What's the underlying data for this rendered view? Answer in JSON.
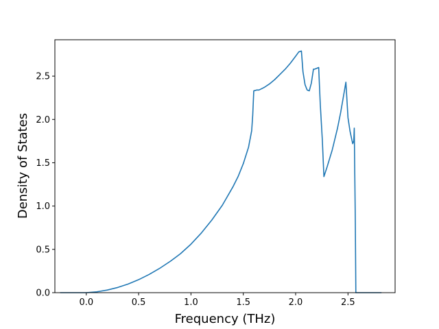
{
  "chart_data": {
    "type": "line",
    "title": "",
    "xlabel": "Frequency (THz)",
    "ylabel": "Density of States",
    "xlim": [
      -0.3,
      2.95
    ],
    "ylim": [
      0.0,
      2.92
    ],
    "xticks": [
      0.0,
      0.5,
      1.0,
      1.5,
      2.0,
      2.5
    ],
    "xtick_labels": [
      "0.0",
      "0.5",
      "1.0",
      "1.5",
      "2.0",
      "2.5"
    ],
    "yticks": [
      0.0,
      0.5,
      1.0,
      1.5,
      2.0,
      2.5
    ],
    "ytick_labels": [
      "0.0",
      "0.5",
      "1.0",
      "1.5",
      "2.0",
      "2.5"
    ],
    "grid": false,
    "series_color": "#1f77b4",
    "series": [
      {
        "x": [
          -0.25,
          0.0,
          0.1,
          0.2,
          0.3,
          0.4,
          0.5,
          0.6,
          0.7,
          0.8,
          0.9,
          1.0,
          1.1,
          1.2,
          1.3,
          1.4,
          1.45,
          1.5,
          1.55,
          1.58,
          1.59,
          1.6,
          1.63,
          1.65,
          1.7,
          1.75,
          1.8,
          1.85,
          1.9,
          1.95,
          2.0,
          2.03,
          2.055,
          2.07,
          2.09,
          2.11,
          2.13,
          2.15,
          2.17,
          2.18,
          2.2,
          2.22,
          2.235,
          2.255,
          2.27,
          2.3,
          2.35,
          2.4,
          2.43,
          2.46,
          2.48,
          2.5,
          2.52,
          2.545,
          2.555,
          2.56,
          2.57,
          2.575,
          2.6,
          2.82
        ],
        "y": [
          0.0,
          0.0,
          0.01,
          0.03,
          0.06,
          0.1,
          0.15,
          0.21,
          0.28,
          0.36,
          0.45,
          0.56,
          0.69,
          0.84,
          1.01,
          1.22,
          1.34,
          1.49,
          1.68,
          1.87,
          2.05,
          2.33,
          2.34,
          2.34,
          2.37,
          2.41,
          2.46,
          2.52,
          2.58,
          2.65,
          2.73,
          2.78,
          2.79,
          2.55,
          2.4,
          2.34,
          2.33,
          2.42,
          2.58,
          2.58,
          2.59,
          2.6,
          2.18,
          1.76,
          1.34,
          1.45,
          1.65,
          1.9,
          2.08,
          2.29,
          2.43,
          2.02,
          1.86,
          1.72,
          1.75,
          1.9,
          0.8,
          0.0,
          0.0,
          0.0
        ]
      }
    ]
  }
}
